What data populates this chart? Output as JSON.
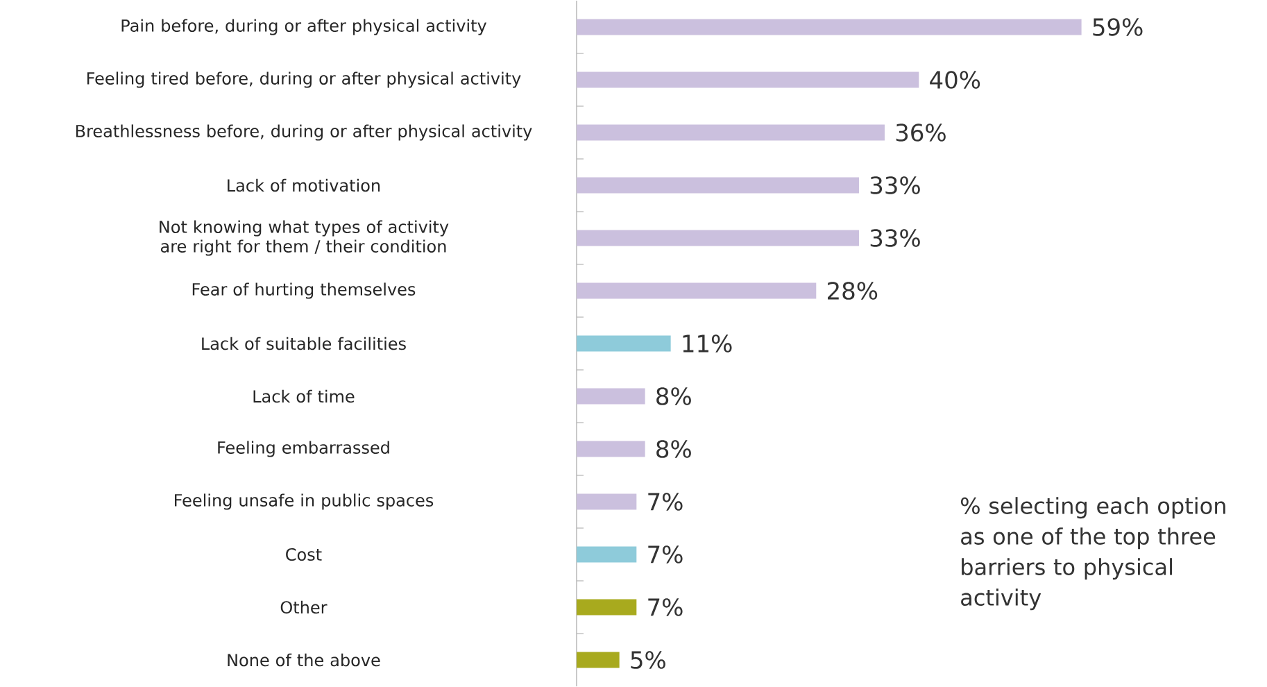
{
  "chart_data": {
    "type": "bar",
    "orientation": "horizontal",
    "categories": [
      "Pain before, during or after physical activity",
      "Feeling tired before, during or after physical activity",
      "Breathlessness before, during or after physical activity",
      "Lack of motivation",
      "Not knowing what types of activity are right for them / their condition",
      "Fear of hurting themselves",
      "Lack of suitable facilities",
      "Lack of time",
      "Feeling embarrassed",
      "Feeling unsafe in public spaces",
      "Cost",
      "Other",
      "None of the above"
    ],
    "values": [
      59,
      40,
      36,
      33,
      33,
      28,
      11,
      8,
      8,
      7,
      7,
      7,
      5
    ],
    "value_labels": [
      "59%",
      "40%",
      "36%",
      "33%",
      "33%",
      "28%",
      "11%",
      "8%",
      "8%",
      "7%",
      "7%",
      "7%",
      "5%"
    ],
    "colors": [
      "#cbc0de",
      "#cbc0de",
      "#cbc0de",
      "#cbc0de",
      "#cbc0de",
      "#cbc0de",
      "#8ecbda",
      "#cbc0de",
      "#cbc0de",
      "#cbc0de",
      "#8ecbda",
      "#a8aa1e",
      "#a8aa1e"
    ],
    "annotations": [
      "% selecting each option as one of the top three barriers to physical activity"
    ]
  }
}
